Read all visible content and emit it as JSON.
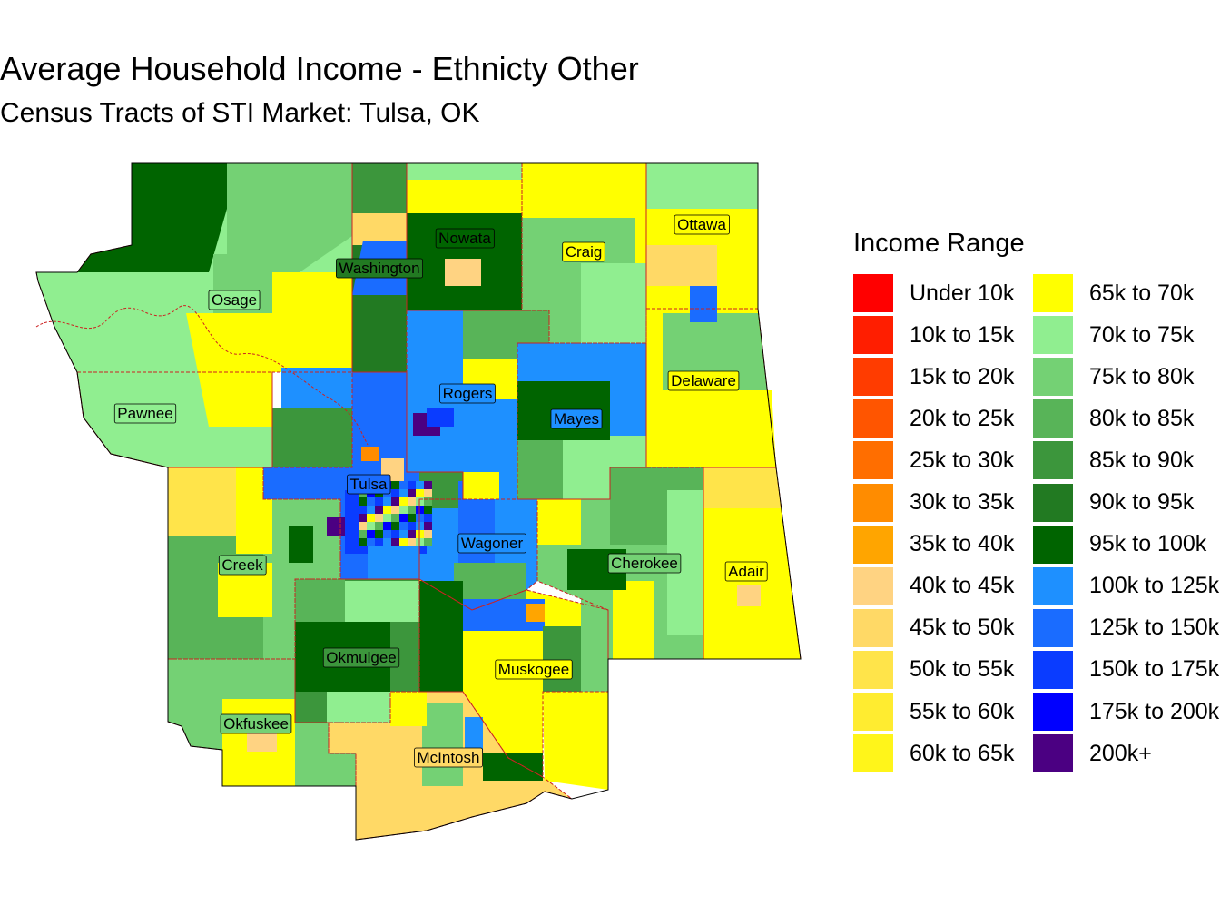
{
  "title": "Average Household Income - Ethnicty Other",
  "subtitle": "Census Tracts of STI Market: Tulsa, OK",
  "legend": {
    "title": "Income Range",
    "items": [
      {
        "label": "Under 10k",
        "color": "#ff0000"
      },
      {
        "label": "10k to 15k",
        "color": "#ff1e00"
      },
      {
        "label": "15k to 20k",
        "color": "#ff3c00"
      },
      {
        "label": "20k to 25k",
        "color": "#ff5500"
      },
      {
        "label": "25k to 30k",
        "color": "#ff6e00"
      },
      {
        "label": "30k to 35k",
        "color": "#ff8c00"
      },
      {
        "label": "35k to 40k",
        "color": "#ffa500"
      },
      {
        "label": "40k to 45k",
        "color": "#ffd382"
      },
      {
        "label": "45k to 50k",
        "color": "#ffd966"
      },
      {
        "label": "50k to 55k",
        "color": "#ffe44a"
      },
      {
        "label": "55k to 60k",
        "color": "#ffec30"
      },
      {
        "label": "60k to 65k",
        "color": "#fff51a"
      },
      {
        "label": "65k to 70k",
        "color": "#ffff00"
      },
      {
        "label": "70k to 75k",
        "color": "#90ee90"
      },
      {
        "label": "75k to 80k",
        "color": "#74d174"
      },
      {
        "label": "80k to 85k",
        "color": "#58b458"
      },
      {
        "label": "85k to 90k",
        "color": "#3c963c"
      },
      {
        "label": "90k to 95k",
        "color": "#227a22"
      },
      {
        "label": "95k to 100k",
        "color": "#006400"
      },
      {
        "label": "100k to 125k",
        "color": "#1e90ff"
      },
      {
        "label": "125k to 150k",
        "color": "#1a6cff"
      },
      {
        "label": "150k to 175k",
        "color": "#0a3cff"
      },
      {
        "label": "175k to 200k",
        "color": "#0000ff"
      },
      {
        "label": "200k+",
        "color": "#4b0082"
      }
    ]
  },
  "counties": [
    {
      "name": "Osage",
      "color": "#90ee90"
    },
    {
      "name": "Washington",
      "color": "#227a22"
    },
    {
      "name": "Nowata",
      "color": "#006400"
    },
    {
      "name": "Craig",
      "color": "#ffff00"
    },
    {
      "name": "Ottawa",
      "color": "#ffff00"
    },
    {
      "name": "Pawnee",
      "color": "#90ee90"
    },
    {
      "name": "Rogers",
      "color": "#1e90ff"
    },
    {
      "name": "Mayes",
      "color": "#1e90ff"
    },
    {
      "name": "Delaware",
      "color": "#ffff00"
    },
    {
      "name": "Tulsa",
      "color": "#1a6cff"
    },
    {
      "name": "Creek",
      "color": "#74d174"
    },
    {
      "name": "Wagoner",
      "color": "#1e90ff"
    },
    {
      "name": "Cherokee",
      "color": "#74d174"
    },
    {
      "name": "Adair",
      "color": "#ffff00"
    },
    {
      "name": "Okmulgee",
      "color": "#3c963c"
    },
    {
      "name": "Muskogee",
      "color": "#ffff00"
    },
    {
      "name": "Okfuskee",
      "color": "#74d174"
    },
    {
      "name": "McIntosh",
      "color": "#ffd966"
    }
  ]
}
